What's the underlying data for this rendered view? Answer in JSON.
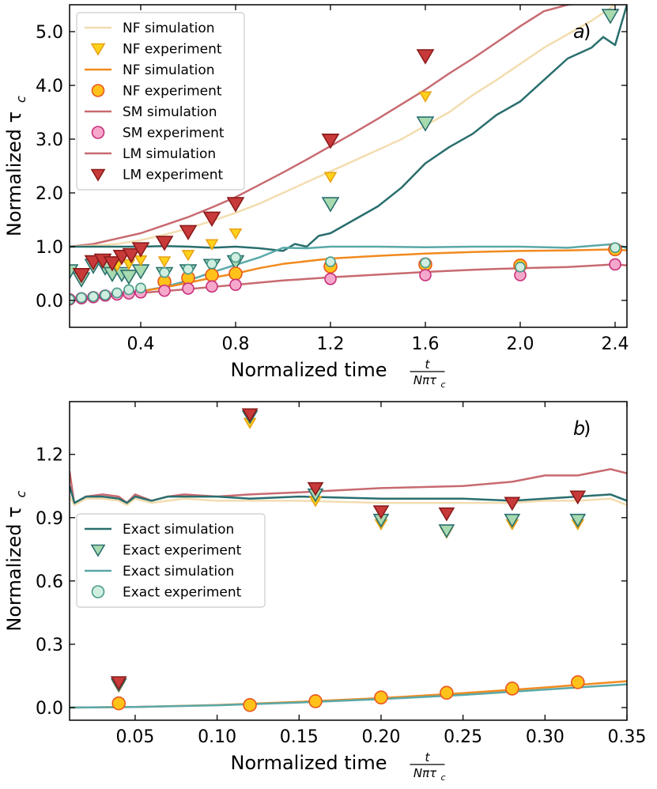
{
  "colors": {
    "nf_lm": "#f3ddb0",
    "nf_lm_marker": "#ffd21a",
    "nf_lm_edge": "#e8a317",
    "nf_sm": "#f28a1e",
    "nf_sm_marker": "#ffc21a",
    "nf_sm_edge": "#e8561e",
    "sm": "#c86a70",
    "sm_marker": "#f5a8cc",
    "sm_edge": "#c8307a",
    "lm": "#c86a70",
    "lm_marker": "#c83a3a",
    "lm_edge": "#8b1a1a",
    "exact_lm": "#2a6e6e",
    "exact_lm_marker": "#a8dab0",
    "exact_lm_edge": "#2a6e6e",
    "exact_sm": "#5aa8a8",
    "exact_sm_marker": "#d0eee0",
    "exact_sm_edge": "#4a9a8a"
  },
  "chart_data": [
    {
      "type": "line",
      "panel": "a)",
      "xlabel": "Normalized time",
      "xlabel_frac": {
        "num": "t",
        "den": "Nπτ",
        "den_sub": "c"
      },
      "ylabel": "Normalized τ",
      "ylabel_sub": "c",
      "xlim": [
        0.1,
        2.45
      ],
      "ylim": [
        -0.5,
        5.5
      ],
      "xticks": [
        0.4,
        0.8,
        1.2,
        1.6,
        2.0,
        2.4
      ],
      "xtick_labels": [
        "0.4",
        "0.8",
        "1.2",
        "1.6",
        "2.0",
        "2.4"
      ],
      "yticks": [
        0,
        1,
        2,
        3,
        4,
        5
      ],
      "ytick_labels": [
        "0.0",
        "1.0",
        "2.0",
        "3.0",
        "4.0",
        "5.0"
      ],
      "legend_position": "upper-left",
      "legend": [
        {
          "label": "NF simulation",
          "kind": "line",
          "color": "nf_lm"
        },
        {
          "label": "NF experiment",
          "kind": "tri",
          "color": "nf_lm_marker",
          "edge": "nf_lm_edge"
        },
        {
          "label": "NF simulation",
          "kind": "line",
          "color": "nf_sm"
        },
        {
          "label": "NF experiment",
          "kind": "circle",
          "color": "nf_sm_marker",
          "edge": "nf_sm_edge"
        },
        {
          "label": "SM simulation",
          "kind": "line",
          "color": "sm"
        },
        {
          "label": "SM experiment",
          "kind": "circle",
          "color": "sm_marker",
          "edge": "sm_edge"
        },
        {
          "label": "LM simulation",
          "kind": "line",
          "color": "lm"
        },
        {
          "label": "LM experiment",
          "kind": "tri",
          "color": "lm_marker",
          "edge": "lm_edge"
        }
      ],
      "series": [
        {
          "name": "LM simulation",
          "kind": "line",
          "color": "lm",
          "width": 2.5,
          "x": [
            0.1,
            0.2,
            0.3,
            0.4,
            0.5,
            0.6,
            0.7,
            0.8,
            0.9,
            1.0,
            1.1,
            1.2,
            1.3,
            1.4,
            1.5,
            1.6,
            1.7,
            1.8,
            1.9,
            2.0,
            2.1,
            2.2,
            2.3
          ],
          "y": [
            1.0,
            1.05,
            1.15,
            1.25,
            1.4,
            1.55,
            1.73,
            1.92,
            2.15,
            2.38,
            2.62,
            2.87,
            3.12,
            3.38,
            3.65,
            3.92,
            4.22,
            4.5,
            4.8,
            5.1,
            5.38,
            5.5,
            5.55
          ]
        },
        {
          "name": "NF simulation (large)",
          "kind": "line",
          "color": "nf_lm",
          "width": 2.5,
          "x": [
            0.1,
            0.2,
            0.3,
            0.4,
            0.5,
            0.6,
            0.7,
            0.8,
            0.9,
            1.0,
            1.1,
            1.2,
            1.3,
            1.4,
            1.5,
            1.6,
            1.7,
            1.8,
            1.9,
            2.0,
            2.1,
            2.2,
            2.3,
            2.4
          ],
          "y": [
            1.0,
            1.02,
            1.05,
            1.12,
            1.22,
            1.34,
            1.48,
            1.63,
            1.8,
            2.0,
            2.2,
            2.4,
            2.6,
            2.8,
            3.0,
            3.25,
            3.5,
            3.82,
            4.1,
            4.4,
            4.7,
            4.95,
            5.2,
            5.5
          ]
        },
        {
          "name": "Exact simulation (large)",
          "kind": "line",
          "color": "exact_lm",
          "width": 2.5,
          "x": [
            0.1,
            0.2,
            0.3,
            0.4,
            0.5,
            0.6,
            0.7,
            0.8,
            0.9,
            1.0,
            1.05,
            1.1,
            1.15,
            1.2,
            1.3,
            1.4,
            1.5,
            1.6,
            1.7,
            1.8,
            1.9,
            2.0,
            2.1,
            2.2,
            2.3,
            2.35,
            2.4,
            2.45
          ],
          "y": [
            1.0,
            1.0,
            1.0,
            1.0,
            1.01,
            1.0,
            0.98,
            1.0,
            0.97,
            0.92,
            1.05,
            1.0,
            1.2,
            1.25,
            1.5,
            1.75,
            2.1,
            2.55,
            2.85,
            3.1,
            3.45,
            3.7,
            4.1,
            4.5,
            4.7,
            4.9,
            4.75,
            5.5
          ]
        },
        {
          "name": "Exact simulation (small)",
          "kind": "line",
          "color": "exact_sm",
          "width": 2.5,
          "x": [
            0.1,
            0.2,
            0.3,
            0.4,
            0.5,
            0.6,
            0.7,
            0.8,
            0.9,
            1.0,
            1.1,
            1.2,
            1.4,
            1.6,
            1.8,
            2.0,
            2.2,
            2.4,
            2.45
          ],
          "y": [
            0.0,
            0.05,
            0.1,
            0.17,
            0.25,
            0.37,
            0.52,
            0.66,
            0.8,
            0.98,
            0.97,
            1.0,
            1.0,
            0.99,
            1.0,
            1.0,
            0.98,
            1.05,
            0.97
          ]
        },
        {
          "name": "NF simulation (small)",
          "kind": "line",
          "color": "nf_sm",
          "width": 2.5,
          "x": [
            0.1,
            0.2,
            0.3,
            0.4,
            0.5,
            0.6,
            0.7,
            0.8,
            0.9,
            1.0,
            1.2,
            1.4,
            1.6,
            1.8,
            2.0,
            2.2,
            2.4,
            2.45
          ],
          "y": [
            0.0,
            0.05,
            0.1,
            0.17,
            0.24,
            0.33,
            0.42,
            0.5,
            0.6,
            0.68,
            0.78,
            0.83,
            0.87,
            0.9,
            0.92,
            0.93,
            0.95,
            0.93
          ]
        },
        {
          "name": "SM simulation",
          "kind": "line",
          "color": "sm",
          "width": 2.5,
          "x": [
            0.1,
            0.2,
            0.3,
            0.4,
            0.6,
            0.8,
            1.0,
            1.2,
            1.4,
            1.6,
            1.8,
            2.0,
            2.2,
            2.4,
            2.45
          ],
          "y": [
            0.0,
            0.04,
            0.09,
            0.14,
            0.21,
            0.29,
            0.37,
            0.43,
            0.48,
            0.53,
            0.57,
            0.6,
            0.62,
            0.67,
            0.65
          ]
        },
        {
          "name": "Exact experiment (large)",
          "kind": "tri",
          "color": "exact_lm_marker",
          "edge": "exact_lm_edge",
          "size": 10,
          "x": [
            0.1,
            0.15,
            0.2,
            0.25,
            0.28,
            0.32,
            0.35,
            0.4,
            0.5,
            0.6,
            0.7,
            0.8,
            1.2,
            1.6,
            2.38
          ],
          "y": [
            0.55,
            0.4,
            0.65,
            0.62,
            0.5,
            0.5,
            0.45,
            0.55,
            0.5,
            0.55,
            0.65,
            0.72,
            1.8,
            3.3,
            5.3
          ]
        },
        {
          "name": "NF experiment (triangle)",
          "kind": "tri",
          "color": "nf_lm_marker",
          "edge": "nf_lm_edge",
          "size": 7,
          "x": [
            0.3,
            0.35,
            0.4,
            0.5,
            0.6,
            0.7,
            0.8,
            1.2,
            1.6
          ],
          "y": [
            0.65,
            0.68,
            0.75,
            0.73,
            0.85,
            1.05,
            1.25,
            2.3,
            3.8
          ]
        },
        {
          "name": "LM experiment",
          "kind": "tri",
          "color": "lm_marker",
          "edge": "lm_edge",
          "size": 10,
          "x": [
            0.15,
            0.2,
            0.24,
            0.28,
            0.32,
            0.36,
            0.4,
            0.5,
            0.6,
            0.7,
            0.8,
            1.2,
            1.6
          ],
          "y": [
            0.48,
            0.72,
            0.75,
            0.7,
            0.82,
            0.85,
            0.96,
            1.08,
            1.28,
            1.53,
            1.8,
            2.98,
            4.55
          ]
        },
        {
          "name": "NF experiment (circle)",
          "kind": "circle",
          "color": "nf_sm_marker",
          "edge": "nf_sm_edge",
          "size": 8,
          "x": [
            0.5,
            0.6,
            0.7,
            0.8,
            1.2,
            1.6,
            2.0,
            2.4
          ],
          "y": [
            0.35,
            0.42,
            0.47,
            0.5,
            0.63,
            0.67,
            0.65,
            0.95
          ]
        },
        {
          "name": "SM experiment",
          "kind": "circle",
          "color": "sm_marker",
          "edge": "sm_edge",
          "size": 7,
          "x": [
            0.1,
            0.15,
            0.2,
            0.25,
            0.3,
            0.35,
            0.4,
            0.5,
            0.6,
            0.7,
            0.8,
            1.2,
            1.6,
            2.0,
            2.4
          ],
          "y": [
            0.02,
            0.04,
            0.06,
            0.09,
            0.11,
            0.13,
            0.15,
            0.18,
            0.22,
            0.26,
            0.29,
            0.4,
            0.47,
            0.47,
            0.67
          ]
        },
        {
          "name": "Exact experiment (small)",
          "kind": "circle",
          "color": "exact_sm_marker",
          "edge": "exact_sm_edge",
          "size": 6,
          "x": [
            0.1,
            0.15,
            0.2,
            0.25,
            0.3,
            0.35,
            0.4,
            0.5,
            0.6,
            0.7,
            0.8,
            1.2,
            1.6,
            2.0,
            2.4
          ],
          "y": [
            0.02,
            0.05,
            0.07,
            0.1,
            0.14,
            0.2,
            0.23,
            0.52,
            0.58,
            0.68,
            0.8,
            0.72,
            0.7,
            0.62,
            0.98
          ]
        }
      ]
    },
    {
      "type": "line",
      "panel": "b)",
      "xlabel": "Normalized time",
      "xlabel_frac": {
        "num": "t",
        "den": "Nπτ",
        "den_sub": "c"
      },
      "ylabel": "Normalized τ",
      "ylabel_sub": "c",
      "xlim": [
        0.01,
        0.35
      ],
      "ylim": [
        -0.06,
        1.45
      ],
      "xticks": [
        0.05,
        0.1,
        0.15,
        0.2,
        0.25,
        0.3,
        0.35
      ],
      "xtick_labels": [
        "0.05",
        "0.10",
        "0.15",
        "0.20",
        "0.25",
        "0.30",
        "0.35"
      ],
      "yticks": [
        0,
        0.3,
        0.6,
        0.9,
        1.2
      ],
      "ytick_labels": [
        "0.0",
        "0.3",
        "0.6",
        "0.9",
        "1.2"
      ],
      "legend_position": "center-left",
      "legend": [
        {
          "label": "Exact simulation",
          "kind": "line",
          "color": "exact_lm"
        },
        {
          "label": "Exact experiment",
          "kind": "tri",
          "color": "exact_lm_marker",
          "edge": "exact_lm_edge"
        },
        {
          "label": "Exact simulation",
          "kind": "line",
          "color": "exact_sm"
        },
        {
          "label": "Exact experiment",
          "kind": "circle",
          "color": "exact_sm_marker",
          "edge": "exact_sm_edge"
        }
      ],
      "series": [
        {
          "name": "LM simulation",
          "kind": "line",
          "color": "lm",
          "width": 2.5,
          "x": [
            0.01,
            0.013,
            0.02,
            0.03,
            0.04,
            0.045,
            0.05,
            0.06,
            0.07,
            0.08,
            0.1,
            0.12,
            0.15,
            0.2,
            0.25,
            0.28,
            0.3,
            0.32,
            0.34,
            0.35
          ],
          "y": [
            1.12,
            0.96,
            1.0,
            1.01,
            1.0,
            0.97,
            1.01,
            0.98,
            1.0,
            1.01,
            1.0,
            1.01,
            1.02,
            1.04,
            1.05,
            1.07,
            1.1,
            1.1,
            1.13,
            1.11
          ]
        },
        {
          "name": "NF simulation (large)",
          "kind": "line",
          "color": "nf_lm",
          "width": 2.5,
          "x": [
            0.01,
            0.013,
            0.02,
            0.03,
            0.04,
            0.045,
            0.05,
            0.06,
            0.07,
            0.08,
            0.1,
            0.12,
            0.15,
            0.2,
            0.25,
            0.28,
            0.3,
            0.32,
            0.34,
            0.35
          ],
          "y": [
            1.0,
            0.96,
            0.99,
            0.99,
            0.98,
            0.96,
            0.99,
            0.97,
            0.98,
            0.99,
            0.98,
            0.98,
            0.98,
            0.97,
            0.97,
            0.97,
            0.98,
            0.98,
            0.99,
            0.96
          ]
        },
        {
          "name": "Exact simulation (large)",
          "kind": "line",
          "color": "exact_lm",
          "width": 2.5,
          "x": [
            0.01,
            0.013,
            0.02,
            0.03,
            0.04,
            0.045,
            0.05,
            0.06,
            0.07,
            0.08,
            0.1,
            0.12,
            0.15,
            0.2,
            0.25,
            0.28,
            0.3,
            0.32,
            0.34,
            0.35
          ],
          "y": [
            1.05,
            0.97,
            1.0,
            1.0,
            0.99,
            0.97,
            1.0,
            0.98,
            1.0,
            1.0,
            1.0,
            0.99,
            1.0,
            0.99,
            0.99,
            0.98,
            0.99,
            1.0,
            1.01,
            0.98
          ]
        },
        {
          "name": "NF simulation (small)",
          "kind": "line",
          "color": "nf_sm",
          "width": 2.5,
          "x": [
            0.01,
            0.05,
            0.1,
            0.15,
            0.2,
            0.25,
            0.3,
            0.35
          ],
          "y": [
            0.0,
            0.003,
            0.012,
            0.027,
            0.045,
            0.068,
            0.095,
            0.125
          ]
        },
        {
          "name": "Exact simulation (small)",
          "kind": "line",
          "color": "exact_sm",
          "width": 2.5,
          "x": [
            0.01,
            0.05,
            0.1,
            0.15,
            0.2,
            0.25,
            0.3,
            0.35
          ],
          "y": [
            0.0,
            0.003,
            0.011,
            0.024,
            0.04,
            0.06,
            0.085,
            0.11
          ]
        },
        {
          "name": "NF experiment (triangle)",
          "kind": "tri",
          "color": "nf_lm_marker",
          "edge": "nf_lm_edge",
          "size": 7,
          "x": [
            0.04,
            0.12,
            0.16,
            0.2,
            0.24,
            0.28,
            0.32
          ],
          "y": [
            0.1,
            1.35,
            0.98,
            0.87,
            0.83,
            0.87,
            0.87
          ]
        },
        {
          "name": "Exact experiment (large)",
          "kind": "tri",
          "color": "exact_lm_marker",
          "edge": "exact_lm_edge",
          "size": 9,
          "x": [
            0.04,
            0.12,
            0.16,
            0.2,
            0.24,
            0.28,
            0.32
          ],
          "y": [
            0.11,
            1.38,
            1.01,
            0.89,
            0.84,
            0.89,
            0.89
          ]
        },
        {
          "name": "LM experiment",
          "kind": "tri",
          "color": "lm_marker",
          "edge": "lm_edge",
          "size": 9,
          "x": [
            0.04,
            0.12,
            0.16,
            0.2,
            0.24,
            0.28,
            0.32
          ],
          "y": [
            0.12,
            1.39,
            1.04,
            0.93,
            0.92,
            0.97,
            1.0
          ]
        },
        {
          "name": "NF experiment (circle)",
          "kind": "circle",
          "color": "nf_sm_marker",
          "edge": "nf_sm_edge",
          "size": 8,
          "x": [
            0.04,
            0.12,
            0.16,
            0.2,
            0.24,
            0.28,
            0.32
          ],
          "y": [
            0.02,
            0.012,
            0.03,
            0.048,
            0.07,
            0.09,
            0.12
          ]
        }
      ]
    }
  ]
}
